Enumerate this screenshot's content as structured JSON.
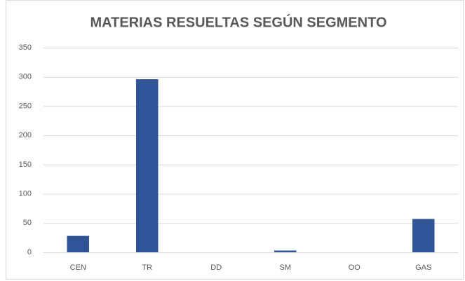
{
  "chart_data": {
    "type": "bar",
    "title": "MATERIAS RESUELTAS SEGÚN SEGMENTO",
    "categories": [
      "CEN",
      "TR",
      "DD",
      "SM",
      "OO",
      "GAS"
    ],
    "values": [
      28,
      296,
      0,
      3,
      0,
      57
    ],
    "color": "#2f5597",
    "ylim": [
      0,
      350
    ],
    "yticks": [
      0,
      50,
      100,
      150,
      200,
      250,
      300,
      350
    ],
    "grid": true
  }
}
